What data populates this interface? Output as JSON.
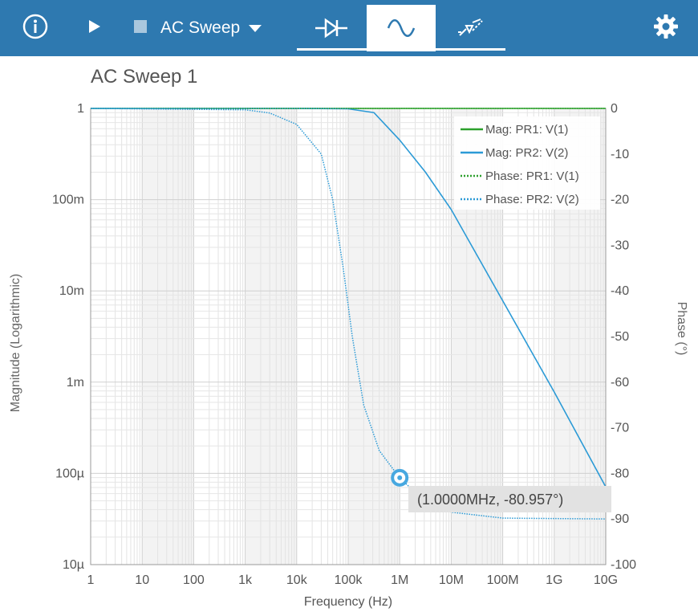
{
  "toolbar": {
    "sweep_selected": "AC Sweep",
    "icons": [
      "info-icon",
      "play-icon",
      "stop-icon",
      "dropdown-arrow-icon",
      "diode-icon",
      "sine-wave-icon",
      "component-edit-icon",
      "gear-icon"
    ],
    "colors": {
      "bar": "#2e79b0",
      "active_tab": "#ffffff"
    }
  },
  "chart_data": {
    "type": "line",
    "title": "AC Sweep 1",
    "xlabel": "Frequency (Hz)",
    "ylabel": "Magnitude (Logarithmic)",
    "y2label": "Phase (°)",
    "xscale": "log",
    "yscale": "log",
    "xlim": [
      1,
      10000000000
    ],
    "ylim": [
      1e-05,
      1
    ],
    "y2lim": [
      -100,
      0
    ],
    "x_tick_labels": [
      "1",
      "10",
      "100",
      "1k",
      "10k",
      "100k",
      "1M",
      "10M",
      "100M",
      "1G",
      "10G"
    ],
    "y_tick_labels": [
      "1",
      "100m",
      "10m",
      "1m",
      "100µ",
      "10µ"
    ],
    "y2_tick_labels": [
      "0",
      "-10",
      "-20",
      "-30",
      "-40",
      "-50",
      "-60",
      "-70",
      "-80",
      "-90",
      "-100"
    ],
    "legend_position": "top-right",
    "grid": true,
    "series": [
      {
        "name": "Mag: PR1: V(1)",
        "axis": "left",
        "style": "solid",
        "color": "#2ca02c",
        "x": [
          1,
          10000000000
        ],
        "y": [
          1,
          1
        ]
      },
      {
        "name": "Mag: PR2: V(2)",
        "axis": "left",
        "style": "solid",
        "color": "#2b9ad6",
        "x": [
          1,
          10000,
          100000,
          316000,
          1000000,
          3160000,
          10000000,
          100000000,
          1000000000,
          10000000000
        ],
        "y": [
          1,
          1,
          0.99,
          0.9,
          0.45,
          0.2,
          0.078,
          0.0078,
          0.00078,
          7.1e-05
        ]
      },
      {
        "name": "Phase: PR1: V(1)",
        "axis": "right",
        "style": "dotted",
        "color": "#2ca02c",
        "x": [
          1,
          10000000000
        ],
        "y": [
          0,
          0
        ]
      },
      {
        "name": "Phase: PR2: V(2)",
        "axis": "right",
        "style": "dotted",
        "color": "#2b9ad6",
        "x": [
          1,
          1000,
          3000,
          10000,
          30000,
          50000,
          80000,
          120000,
          200000,
          400000,
          1000000,
          3000000,
          10000000,
          100000000,
          10000000000
        ],
        "y": [
          0,
          -0.3,
          -1,
          -3.5,
          -10,
          -20,
          -35,
          -50,
          -65,
          -75,
          -81,
          -86,
          -88.5,
          -89.8,
          -90
        ]
      }
    ],
    "annotation": {
      "x": 1000000,
      "y": -80.957,
      "label": "(1.0000MHz, -80.957°)"
    }
  }
}
